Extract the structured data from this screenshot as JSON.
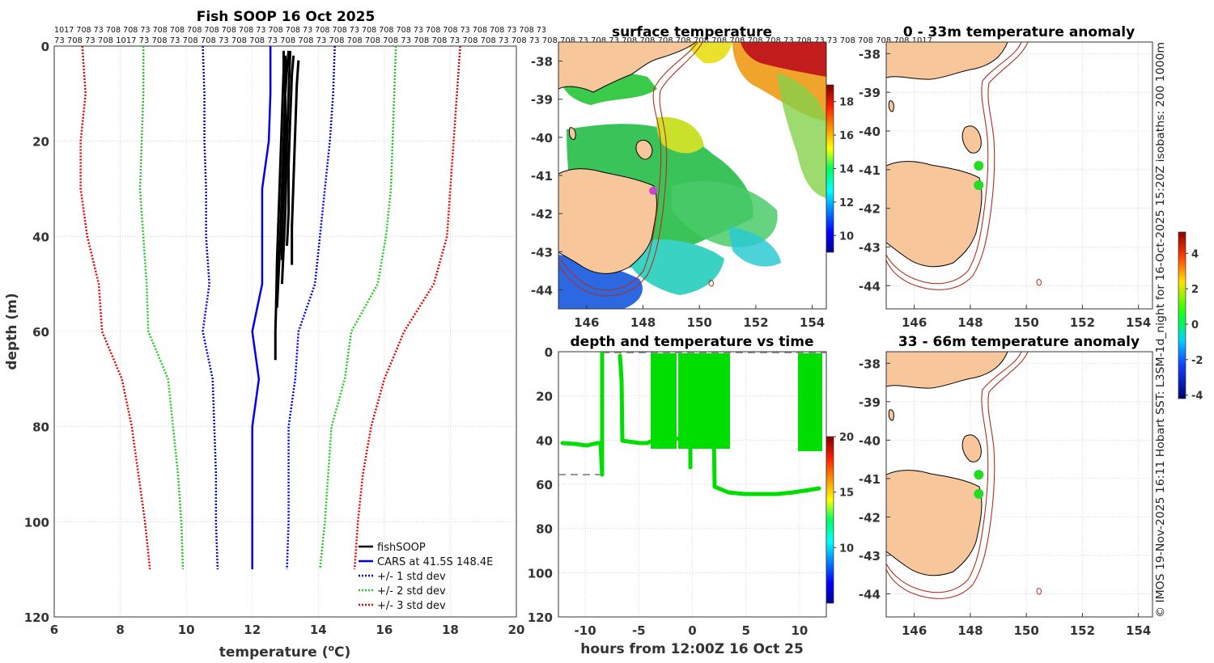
{
  "figure": {
    "credit": "© IMOS 19-Nov-2025 16:11 Hobart SST: L3SM-1d_night for 16-Oct-2025 15:20Z isobaths: 200  1000m"
  },
  "colors": {
    "fishsoop": "#000000",
    "cars": "#0000ee",
    "sd1": "#0000ee",
    "sd2": "#22cc22",
    "sd3": "#ee0000",
    "land": "#f7c69a",
    "isobath": "#b03020",
    "timeseries": "#00dd00",
    "marker": "#cc44cc"
  },
  "chart_data": [
    {
      "id": "profile",
      "type": "line",
      "title": "Fish SOOP 16 Oct 2025",
      "xlabel": "temperature (°C)",
      "xlabel_parts": {
        "pre": "temperature (",
        "sup": "o",
        "post": "C)"
      },
      "ylabel": "depth (m)",
      "xlim": [
        6,
        20
      ],
      "ylim": [
        120,
        0
      ],
      "grid": true,
      "xticks": [
        6,
        8,
        10,
        12,
        14,
        16,
        18,
        20
      ],
      "yticks": [
        0,
        20,
        40,
        60,
        80,
        100,
        120
      ],
      "top_labels_row1": "1017 708 73 708 708 73 708 708 708 708 708 708 73 708 708 73 708 708 73 708 708 708 73 708 708 73 708 708 73 708 73",
      "top_labels_row2": "73 708 73 708 1017 73 708 73 708 708 73 708 708 73 708 708 73 708 708 708 708 73 708 708 73 708 708 73 708 73 708 708 73 708 73 708 708 708 708 708 708 708 708 708 73 708 73 73 708 708 708 708 1017",
      "legend": {
        "position": "bottom-right",
        "items": [
          "fishSOOP",
          "CARS at 41.5S 148.4E",
          "+/- 1 std dev",
          "+/- 2 std dev",
          "+/- 3 std dev"
        ]
      },
      "depths": [
        0,
        10,
        20,
        30,
        40,
        50,
        60,
        70,
        80,
        90,
        100,
        110
      ],
      "series": [
        {
          "name": "CARS at 41.5S 148.4E",
          "style": "solid",
          "values": [
            12.55,
            12.55,
            12.5,
            12.3,
            12.3,
            12.3,
            12.0,
            12.2,
            12.0,
            12.0,
            12.0,
            12.0
          ]
        },
        {
          "name": "+/- 1 std dev low",
          "style": "dotted",
          "values": [
            10.5,
            10.55,
            10.55,
            10.6,
            10.6,
            10.7,
            10.5,
            10.8,
            10.85,
            10.9,
            10.9,
            10.95
          ]
        },
        {
          "name": "+/- 1 std dev high",
          "style": "dotted",
          "values": [
            14.5,
            14.45,
            14.35,
            14.2,
            14.05,
            13.9,
            13.4,
            13.3,
            13.1,
            13.1,
            13.1,
            13.05
          ]
        },
        {
          "name": "+/- 2 std dev low",
          "style": "dotted",
          "values": [
            8.7,
            8.7,
            8.65,
            8.6,
            8.7,
            8.8,
            8.85,
            9.45,
            9.6,
            9.75,
            9.85,
            9.9
          ]
        },
        {
          "name": "+/- 2 std dev high",
          "style": "dotted",
          "values": [
            16.35,
            16.3,
            16.25,
            16.2,
            16.05,
            15.8,
            15.0,
            14.8,
            14.4,
            14.3,
            14.2,
            14.05
          ]
        },
        {
          "name": "+/- 3 std dev low",
          "style": "dotted",
          "values": [
            6.85,
            6.95,
            6.8,
            6.8,
            7.0,
            7.35,
            7.45,
            8.05,
            8.35,
            8.55,
            8.75,
            8.9
          ]
        },
        {
          "name": "+/- 3 std dev high",
          "style": "dotted",
          "values": [
            18.3,
            18.2,
            18.1,
            18.0,
            17.9,
            17.5,
            16.6,
            16.0,
            15.6,
            15.35,
            15.2,
            15.1
          ]
        }
      ],
      "fishsoop_casts": [
        {
          "depths": [
            1,
            5,
            15,
            25,
            35,
            45,
            55,
            60,
            66
          ],
          "values": [
            12.95,
            12.95,
            12.9,
            12.85,
            12.8,
            12.75,
            12.72,
            12.7,
            12.7
          ]
        },
        {
          "depths": [
            1,
            5,
            10,
            20,
            30,
            40,
            45
          ],
          "values": [
            13.1,
            13.05,
            13.0,
            13.0,
            12.95,
            12.9,
            12.9
          ]
        },
        {
          "depths": [
            2,
            6,
            15,
            25,
            35,
            42
          ],
          "values": [
            13.25,
            13.2,
            13.15,
            13.1,
            13.1,
            13.05
          ]
        },
        {
          "depths": [
            3,
            8,
            18,
            28,
            38,
            46
          ],
          "values": [
            13.4,
            13.35,
            13.3,
            13.25,
            13.2,
            13.2
          ]
        },
        {
          "depths": [
            2,
            10,
            20,
            30,
            40,
            55
          ],
          "values": [
            13.0,
            13.0,
            12.95,
            12.9,
            12.85,
            12.75
          ]
        },
        {
          "depths": [
            1,
            10,
            20,
            35,
            50
          ],
          "values": [
            13.15,
            13.1,
            13.05,
            13.0,
            12.9
          ]
        }
      ]
    },
    {
      "id": "sst",
      "type": "heatmap",
      "title": "surface temperature",
      "xlim": [
        145,
        154.5
      ],
      "ylim": [
        -44.5,
        -37.5
      ],
      "xticks": [
        146,
        148,
        150,
        152,
        154
      ],
      "yticks": [
        -38,
        -39,
        -40,
        -41,
        -42,
        -43,
        -44
      ],
      "colorbar": {
        "range": [
          9,
          19
        ],
        "ticks": [
          10,
          12,
          14,
          16,
          18
        ]
      }
    },
    {
      "id": "timeseries",
      "type": "scatter",
      "title": "depth and temperature vs time",
      "xlabel": "hours from 12:00Z 16 Oct 25",
      "xlim": [
        -12.5,
        12.5
      ],
      "ylim": [
        120,
        0
      ],
      "xticks": [
        -10,
        -5,
        0,
        5,
        10
      ],
      "yticks": [
        0,
        20,
        40,
        60,
        80,
        100,
        120
      ],
      "colorbar": {
        "range": [
          5,
          20
        ],
        "ticks": [
          10,
          15,
          20
        ]
      }
    },
    {
      "id": "anom1",
      "type": "heatmap",
      "title": "0 - 33m temperature anomaly",
      "xlim": [
        145,
        154.5
      ],
      "ylim": [
        -44.6,
        -37.7
      ],
      "xticks": [
        146,
        148,
        150,
        152,
        154
      ],
      "yticks": [
        -38,
        -39,
        -40,
        -41,
        -42,
        -43,
        -44
      ],
      "points": [
        {
          "lon": 148.3,
          "lat": -40.9,
          "anomaly": 0.1
        },
        {
          "lon": 148.3,
          "lat": -41.4,
          "anomaly": 0.2
        }
      ]
    },
    {
      "id": "anom2",
      "type": "heatmap",
      "title": "33 - 66m temperature anomaly",
      "xlim": [
        145,
        154.5
      ],
      "ylim": [
        -44.6,
        -37.7
      ],
      "xticks": [
        146,
        148,
        150,
        152,
        154
      ],
      "yticks": [
        -38,
        -39,
        -40,
        -41,
        -42,
        -43,
        -44
      ],
      "points": [
        {
          "lon": 148.3,
          "lat": -40.9,
          "anomaly": 0.1
        },
        {
          "lon": 148.3,
          "lat": -41.4,
          "anomaly": 0.2
        }
      ],
      "colorbar": {
        "range": [
          -4.2,
          5.2
        ],
        "ticks": [
          -4,
          -2,
          0,
          2,
          4
        ]
      }
    }
  ]
}
